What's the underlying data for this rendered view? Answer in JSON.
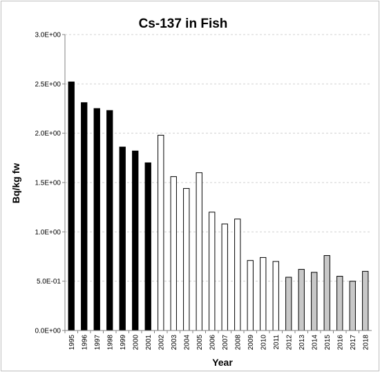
{
  "chart_data": {
    "type": "bar",
    "title": "Cs-137 in Fish",
    "xlabel": "Year",
    "ylabel": "Bq/kg fw",
    "ylim": [
      0,
      3.0
    ],
    "yticks": [
      0,
      0.5,
      1.0,
      1.5,
      2.0,
      2.5,
      3.0
    ],
    "ytick_labels": [
      "0.0E+00",
      "5.0E-01",
      "1.0E+00",
      "1.5E+00",
      "2.0E+00",
      "2.5E+00",
      "3.0E+00"
    ],
    "grid": true,
    "categories": [
      "1995",
      "1996",
      "1997",
      "1998",
      "1999",
      "2000",
      "2001",
      "2002",
      "2003",
      "2004",
      "2005",
      "2006",
      "2007",
      "2008",
      "2009",
      "2010",
      "2011",
      "2012",
      "2013",
      "2014",
      "2015",
      "2016",
      "2017",
      "2018"
    ],
    "values": [
      2.52,
      2.31,
      2.25,
      2.23,
      1.86,
      1.82,
      1.7,
      1.98,
      1.56,
      1.44,
      1.6,
      1.2,
      1.08,
      1.13,
      0.71,
      0.74,
      0.7,
      0.54,
      0.62,
      0.59,
      0.76,
      0.55,
      0.5,
      0.6
    ],
    "bar_fills": [
      "#000000",
      "#000000",
      "#000000",
      "#000000",
      "#000000",
      "#000000",
      "#000000",
      "#ffffff",
      "#ffffff",
      "#ffffff",
      "#ffffff",
      "#ffffff",
      "#ffffff",
      "#ffffff",
      "#ffffff",
      "#ffffff",
      "#ffffff",
      "#c8c8c8",
      "#c8c8c8",
      "#c8c8c8",
      "#c8c8c8",
      "#c8c8c8",
      "#c8c8c8",
      "#c8c8c8"
    ],
    "bar_stroke": "#000000"
  }
}
